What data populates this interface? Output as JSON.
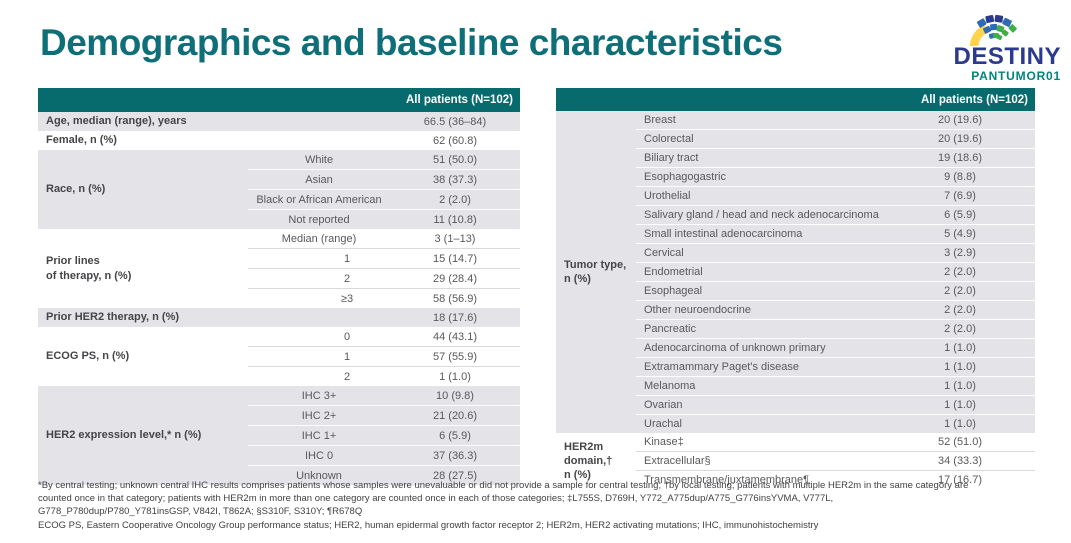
{
  "title": "Demographics and baseline characteristics",
  "logo": {
    "brand": "DESTINY",
    "sub": "PANTUMOR01"
  },
  "colors": {
    "header_teal": "#076B6E",
    "title_teal": "#0F6F79",
    "row_gray": "#E4E4E8",
    "brand_navy": "#2B3A8F",
    "brand_teal": "#00857C",
    "fan_blue": "#2D6CB5",
    "fan_navy": "#2B3990",
    "fan_green": "#3FAE49",
    "fan_yellow": "#FFD34D"
  },
  "tables": [
    {
      "id": "left",
      "header": "All patients (N=102)",
      "groups": [
        {
          "label": "Age, median (range), years",
          "shade": "gray",
          "rows": [
            {
              "sub": "",
              "value": "66.5 (36–84)"
            }
          ]
        },
        {
          "label": "Female, n (%)",
          "shade": "white",
          "rows": [
            {
              "sub": "",
              "value": "62 (60.8)"
            }
          ]
        },
        {
          "label": "Race, n (%)",
          "shade": "gray",
          "rows": [
            {
              "sub": "White",
              "value": "51 (50.0)"
            },
            {
              "sub": "Asian",
              "value": "38 (37.3)"
            },
            {
              "sub": "Black or African American",
              "value": "2 (2.0)"
            },
            {
              "sub": "Not reported",
              "value": "11 (10.8)"
            }
          ]
        },
        {
          "label": "Prior lines\nof therapy, n (%)",
          "shade": "white",
          "rows": [
            {
              "sub": "Median (range)",
              "value": "3 (1–13)"
            },
            {
              "sub": "1",
              "value": "15 (14.7)",
              "indent": true
            },
            {
              "sub": "2",
              "value": "29 (28.4)",
              "indent": true
            },
            {
              "sub": "≥3",
              "value": "58 (56.9)",
              "indent": true
            }
          ]
        },
        {
          "label": "Prior HER2 therapy, n (%)",
          "shade": "gray",
          "rows": [
            {
              "sub": "",
              "value": "18 (17.6)"
            }
          ]
        },
        {
          "label": "ECOG PS, n (%)",
          "shade": "white",
          "rows": [
            {
              "sub": "0",
              "value": "44 (43.1)",
              "indent": true
            },
            {
              "sub": "1",
              "value": "57 (55.9)",
              "indent": true
            },
            {
              "sub": "2",
              "value": "1 (1.0)",
              "indent": true
            }
          ]
        },
        {
          "label": "HER2 expression level,* n (%)",
          "shade": "gray",
          "rows": [
            {
              "sub": "IHC 3+",
              "value": "10 (9.8)"
            },
            {
              "sub": "IHC 2+",
              "value": "21 (20.6)"
            },
            {
              "sub": "IHC 1+",
              "value": "6 (5.9)"
            },
            {
              "sub": "IHC 0",
              "value": "37 (36.3)"
            },
            {
              "sub": "Unknown",
              "value": "28 (27.5)"
            }
          ]
        }
      ]
    },
    {
      "id": "right",
      "header": "All patients (N=102)",
      "groups": [
        {
          "label": "Tumor type,\nn (%)",
          "shade": "gray",
          "rows": [
            {
              "sub": "Breast",
              "value": "20 (19.6)"
            },
            {
              "sub": "Colorectal",
              "value": "20 (19.6)"
            },
            {
              "sub": "Biliary tract",
              "value": "19 (18.6)"
            },
            {
              "sub": "Esophagogastric",
              "value": "9 (8.8)"
            },
            {
              "sub": "Urothelial",
              "value": "7 (6.9)"
            },
            {
              "sub": "Salivary gland / head and neck adenocarcinoma",
              "value": "6 (5.9)"
            },
            {
              "sub": "Small intestinal adenocarcinoma",
              "value": "5 (4.9)"
            },
            {
              "sub": "Cervical",
              "value": "3 (2.9)"
            },
            {
              "sub": "Endometrial",
              "value": "2 (2.0)"
            },
            {
              "sub": "Esophageal",
              "value": "2 (2.0)"
            },
            {
              "sub": "Other neuroendocrine",
              "value": "2 (2.0)"
            },
            {
              "sub": "Pancreatic",
              "value": "2 (2.0)"
            },
            {
              "sub": "Adenocarcinoma of unknown primary",
              "value": "1 (1.0)"
            },
            {
              "sub": "Extramammary Paget's disease",
              "value": "1 (1.0)"
            },
            {
              "sub": "Melanoma",
              "value": "1 (1.0)"
            },
            {
              "sub": "Ovarian",
              "value": "1 (1.0)"
            },
            {
              "sub": "Urachal",
              "value": "1 (1.0)"
            }
          ]
        },
        {
          "label": "HER2m\ndomain,†\nn (%)",
          "shade": "white",
          "rows": [
            {
              "sub": "Kinase‡",
              "value": "52 (51.0)"
            },
            {
              "sub": "Extracellular§",
              "value": "34 (33.3)"
            },
            {
              "sub": "Transmembrane/juxtamembrane¶",
              "value": "17 (16.7)"
            }
          ]
        }
      ]
    }
  ],
  "footnotes": [
    "*By central testing; unknown central IHC results comprises patients whose samples were unevaluable or did not provide a sample for central testing; †by local testing; patients with multiple HER2m in the same category are",
    "counted once in that category; patients with HER2m in more than one category are counted once in each of those categories; ‡L755S, D769H, Y772_A775dup/A775_G776insYVMA, V777L,",
    "G778_P780dup/P780_Y781insGSP, V842I, T862A; §S310F, S310Y; ¶R678Q",
    "ECOG PS, Eastern Cooperative Oncology Group performance status; HER2, human epidermal growth factor receptor 2; HER2m, HER2 activating mutations; IHC, immunohistochemistry"
  ]
}
